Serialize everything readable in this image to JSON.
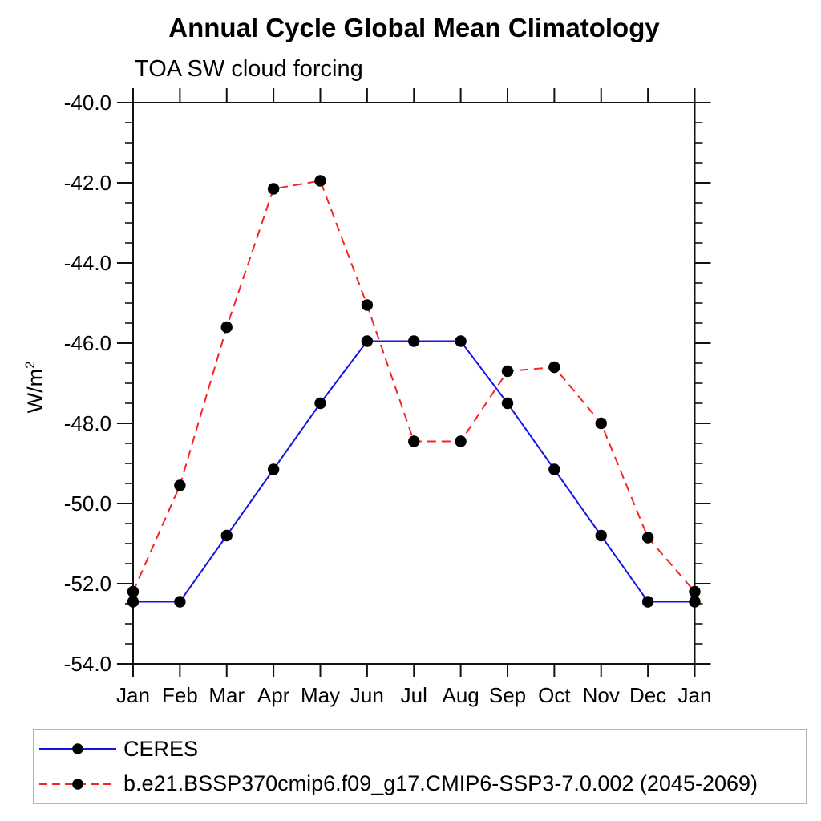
{
  "chart_data": {
    "type": "line",
    "title": "Annual Cycle Global Mean Climatology",
    "subtitle": "TOA SW cloud forcing",
    "ylabel_base": "W/m",
    "ylabel_sup": "2",
    "categories": [
      "Jan",
      "Feb",
      "Mar",
      "Apr",
      "May",
      "Jun",
      "Jul",
      "Aug",
      "Sep",
      "Oct",
      "Nov",
      "Dec",
      "Jan"
    ],
    "ylim": [
      -54,
      -40
    ],
    "ytick_values": [
      -40,
      -42,
      -44,
      -46,
      -48,
      -50,
      -52,
      -54
    ],
    "ytick_labels": [
      "-40.0",
      "-42.0",
      "-44.0",
      "-46.0",
      "-48.0",
      "-50.0",
      "-52.0",
      "-54.0"
    ],
    "ytick_minor_step": 0.5,
    "grid": false,
    "legend_position": "bottom",
    "series": [
      {
        "name": "CERES",
        "color": "#1414e8",
        "line_style": "solid",
        "marker": "filled-circle",
        "marker_color": "#000000",
        "values": [
          -52.45,
          -52.45,
          -50.8,
          -49.15,
          -47.5,
          -45.95,
          -45.95,
          -45.95,
          -47.5,
          -49.15,
          -50.8,
          -52.45,
          -52.45
        ]
      },
      {
        "name": "b.e21.BSSP370cmip6.f09_g17.CMIP6-SSP3-7.0.002 (2045-2069)",
        "color": "#f52525",
        "line_style": "dashed",
        "marker": "filled-circle",
        "marker_color": "#000000",
        "values": [
          -52.2,
          -49.55,
          -45.6,
          -42.15,
          -41.95,
          -45.05,
          -48.45,
          -48.45,
          -46.7,
          -46.6,
          -48.0,
          -50.85,
          -52.2
        ]
      }
    ]
  },
  "colors": {
    "axis": "#111111",
    "tick_text": "#000000",
    "legend_border": "#b3b3b3"
  }
}
